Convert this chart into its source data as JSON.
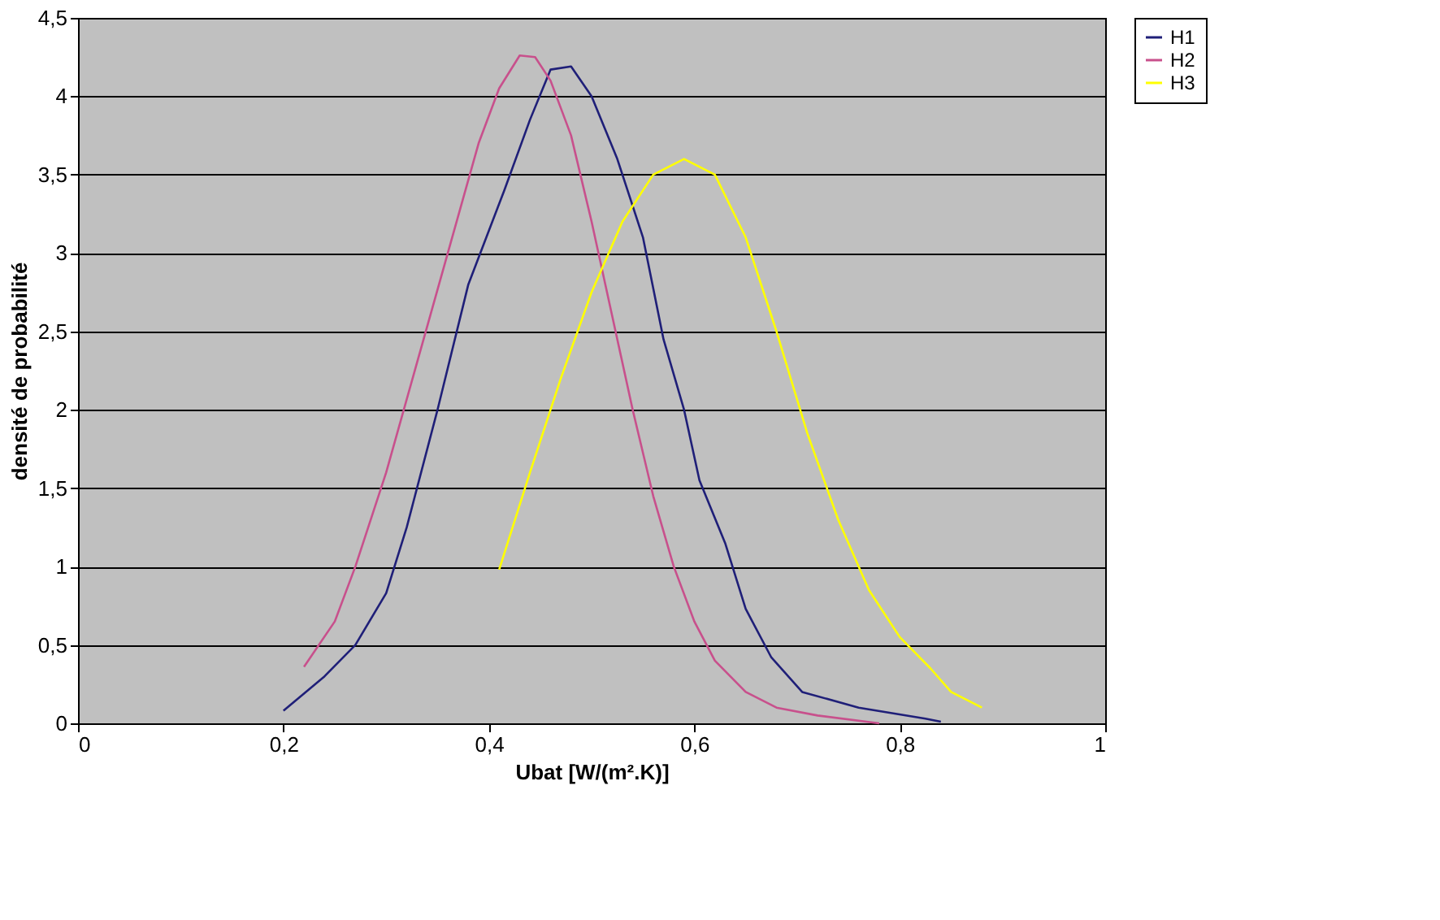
{
  "chart_data": {
    "type": "line",
    "xlabel": "Ubat [W/(m².K)]",
    "ylabel": "densité de probabilité",
    "xlim": [
      0,
      1
    ],
    "ylim": [
      0,
      4.5
    ],
    "xticks": [
      0,
      {
        "value": 0.2,
        "label": "0,2"
      },
      {
        "value": 0.4,
        "label": "0,4"
      },
      {
        "value": 0.6,
        "label": "0,6"
      },
      {
        "value": 0.8,
        "label": "0,8"
      },
      1
    ],
    "yticks": [
      0,
      {
        "value": 0.5,
        "label": "0,5"
      },
      1,
      {
        "value": 1.5,
        "label": "1,5"
      },
      2,
      {
        "value": 2.5,
        "label": "2,5"
      },
      3,
      {
        "value": 3.5,
        "label": "3,5"
      },
      4,
      {
        "value": 4.5,
        "label": "4,5"
      }
    ],
    "grid": "y",
    "legend": "right",
    "marker": "none",
    "line_style": "solid",
    "series": [
      {
        "name": "H1",
        "color": "#1f1f78",
        "x": [
          0.2,
          0.24,
          0.27,
          0.3,
          0.32,
          0.35,
          0.38,
          0.415,
          0.44,
          0.46,
          0.48,
          0.5,
          0.525,
          0.55,
          0.57,
          0.59,
          0.605,
          0.63,
          0.65,
          0.675,
          0.705,
          0.76,
          0.825,
          0.84
        ],
        "values": [
          0.08,
          0.3,
          0.5,
          0.83,
          1.25,
          2.0,
          2.8,
          3.4,
          3.85,
          4.17,
          4.19,
          4.0,
          3.6,
          3.1,
          2.45,
          2.0,
          1.55,
          1.15,
          0.73,
          0.42,
          0.2,
          0.1,
          0.03,
          0.01
        ]
      },
      {
        "name": "H2",
        "color": "#c8508c",
        "x": [
          0.22,
          0.25,
          0.27,
          0.3,
          0.33,
          0.36,
          0.39,
          0.41,
          0.43,
          0.445,
          0.46,
          0.48,
          0.5,
          0.52,
          0.54,
          0.56,
          0.58,
          0.6,
          0.62,
          0.65,
          0.68,
          0.72,
          0.78
        ],
        "values": [
          0.36,
          0.65,
          1.0,
          1.6,
          2.3,
          3.0,
          3.7,
          4.05,
          4.26,
          4.25,
          4.1,
          3.75,
          3.2,
          2.6,
          2.0,
          1.45,
          1.0,
          0.65,
          0.4,
          0.2,
          0.1,
          0.05,
          0.0
        ]
      },
      {
        "name": "H3",
        "color": "#ffff00",
        "x": [
          0.41,
          0.44,
          0.47,
          0.5,
          0.53,
          0.56,
          0.59,
          0.62,
          0.65,
          0.68,
          0.71,
          0.74,
          0.77,
          0.8,
          0.83,
          0.85,
          0.88
        ],
        "values": [
          0.98,
          1.6,
          2.2,
          2.75,
          3.2,
          3.5,
          3.6,
          3.5,
          3.1,
          2.5,
          1.85,
          1.3,
          0.85,
          0.55,
          0.35,
          0.2,
          0.1
        ]
      }
    ]
  }
}
